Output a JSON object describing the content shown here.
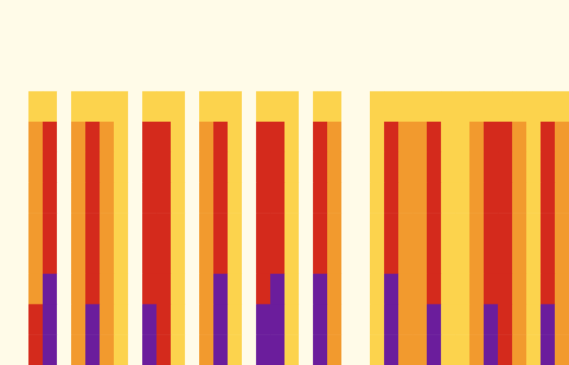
{
  "chart_data": {
    "type": "heatmap",
    "tick_labels": false,
    "xlim": [
      0,
      40
    ],
    "ylim": [
      0,
      12
    ],
    "colors": [
      "#fffbe8",
      "#fcd34d",
      "#f29a2e",
      "#d42a1c",
      "#6b1d9c"
    ],
    "cells": [
      [
        0,
        0,
        0,
        0,
        0,
        0,
        0,
        0,
        0,
        0,
        0,
        0,
        0,
        0,
        0,
        0,
        0,
        0,
        0,
        0,
        0,
        0,
        0,
        0,
        0,
        0,
        0,
        0,
        0,
        0,
        0,
        0,
        0,
        0,
        0,
        0,
        0,
        0,
        0,
        0
      ],
      [
        0,
        0,
        0,
        0,
        0,
        0,
        0,
        0,
        0,
        0,
        0,
        0,
        0,
        0,
        0,
        0,
        0,
        0,
        0,
        0,
        0,
        0,
        0,
        0,
        0,
        0,
        0,
        0,
        0,
        0,
        0,
        0,
        0,
        0,
        0,
        0,
        0,
        0,
        0,
        0
      ],
      [
        0,
        0,
        0,
        0,
        0,
        0,
        0,
        0,
        0,
        0,
        0,
        0,
        0,
        0,
        0,
        0,
        0,
        0,
        0,
        0,
        0,
        0,
        0,
        0,
        0,
        0,
        0,
        0,
        0,
        0,
        0,
        0,
        0,
        0,
        0,
        0,
        0,
        0,
        0,
        0
      ],
      [
        0,
        0,
        1,
        1,
        0,
        1,
        1,
        1,
        1,
        0,
        1,
        1,
        1,
        0,
        1,
        1,
        1,
        0,
        1,
        1,
        1,
        0,
        1,
        1,
        0,
        0,
        1,
        1,
        1,
        1,
        1,
        1,
        1,
        1,
        1,
        1,
        1,
        1,
        1,
        1
      ],
      [
        0,
        0,
        2,
        3,
        0,
        2,
        3,
        2,
        1,
        0,
        3,
        3,
        1,
        0,
        2,
        3,
        1,
        0,
        3,
        3,
        1,
        0,
        3,
        2,
        0,
        0,
        1,
        3,
        2,
        2,
        3,
        1,
        1,
        2,
        3,
        3,
        2,
        1,
        3,
        2
      ],
      [
        0,
        0,
        2,
        3,
        0,
        2,
        3,
        2,
        1,
        0,
        3,
        3,
        1,
        0,
        2,
        3,
        1,
        0,
        3,
        3,
        1,
        0,
        3,
        2,
        0,
        0,
        1,
        3,
        2,
        2,
        3,
        1,
        1,
        2,
        3,
        3,
        2,
        1,
        3,
        2
      ],
      [
        0,
        0,
        2,
        3,
        0,
        2,
        3,
        2,
        1,
        0,
        3,
        3,
        1,
        0,
        2,
        3,
        1,
        0,
        3,
        3,
        1,
        0,
        3,
        2,
        0,
        0,
        1,
        3,
        2,
        2,
        3,
        1,
        1,
        2,
        3,
        3,
        2,
        1,
        3,
        2
      ],
      [
        0,
        0,
        2,
        3,
        0,
        2,
        3,
        2,
        1,
        0,
        3,
        3,
        1,
        0,
        2,
        3,
        1,
        0,
        3,
        3,
        1,
        0,
        3,
        2,
        0,
        0,
        1,
        3,
        2,
        2,
        3,
        1,
        1,
        2,
        3,
        3,
        2,
        1,
        3,
        2
      ],
      [
        0,
        0,
        2,
        3,
        0,
        2,
        3,
        2,
        1,
        0,
        3,
        3,
        1,
        0,
        2,
        3,
        1,
        0,
        3,
        3,
        1,
        0,
        3,
        2,
        0,
        0,
        1,
        3,
        2,
        2,
        3,
        1,
        1,
        2,
        3,
        3,
        2,
        1,
        3,
        2
      ],
      [
        0,
        0,
        2,
        4,
        0,
        2,
        3,
        2,
        1,
        0,
        3,
        3,
        1,
        0,
        2,
        4,
        1,
        0,
        3,
        4,
        1,
        0,
        4,
        2,
        0,
        0,
        1,
        4,
        2,
        2,
        3,
        1,
        1,
        2,
        3,
        3,
        2,
        1,
        3,
        2
      ],
      [
        0,
        0,
        3,
        4,
        0,
        2,
        4,
        2,
        1,
        0,
        4,
        3,
        1,
        0,
        2,
        4,
        1,
        0,
        4,
        4,
        1,
        0,
        4,
        2,
        0,
        0,
        1,
        4,
        2,
        2,
        4,
        1,
        1,
        2,
        4,
        3,
        2,
        1,
        4,
        2
      ],
      [
        0,
        0,
        3,
        4,
        0,
        2,
        4,
        2,
        1,
        0,
        4,
        3,
        1,
        0,
        2,
        4,
        1,
        0,
        4,
        4,
        1,
        0,
        4,
        2,
        0,
        0,
        1,
        4,
        2,
        2,
        4,
        1,
        1,
        2,
        4,
        3,
        2,
        1,
        4,
        2
      ]
    ]
  }
}
